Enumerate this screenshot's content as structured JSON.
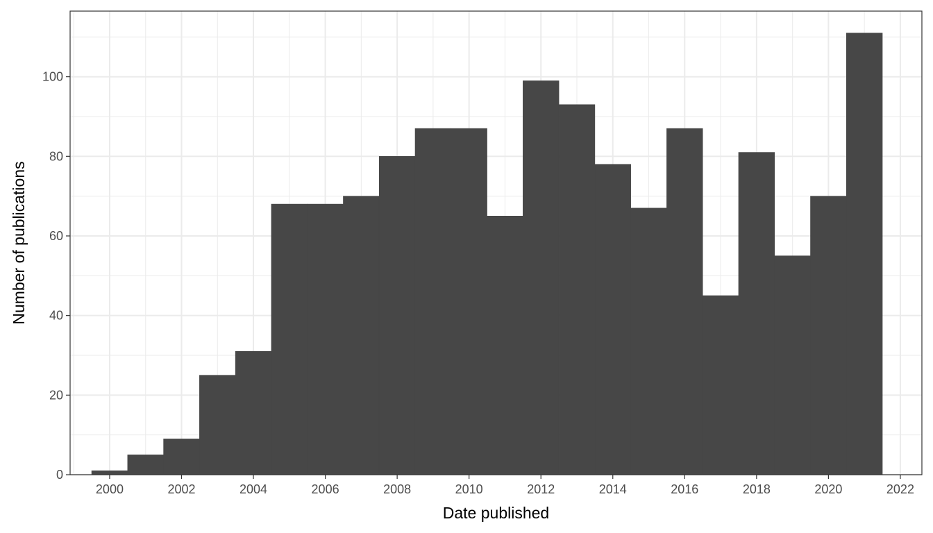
{
  "chart_data": {
    "type": "bar",
    "xlabel": "Date published",
    "ylabel": "Number of publications",
    "bar_color": "#474747",
    "x": [
      2000,
      2001,
      2002,
      2003,
      2004,
      2005,
      2006,
      2007,
      2008,
      2009,
      2010,
      2011,
      2012,
      2013,
      2014,
      2015,
      2016,
      2017,
      2018,
      2019,
      2020,
      2021
    ],
    "values": [
      1,
      5,
      9,
      25,
      31,
      68,
      68,
      70,
      80,
      87,
      87,
      65,
      99,
      93,
      78,
      67,
      87,
      45,
      81,
      55,
      70,
      111
    ],
    "xlim": [
      1998.9,
      2022.6
    ],
    "ylim": [
      0,
      116.5
    ],
    "x_ticks": [
      "2000",
      "2002",
      "2004",
      "2006",
      "2008",
      "2010",
      "2012",
      "2014",
      "2016",
      "2018",
      "2020",
      "2022"
    ],
    "y_ticks": [
      "0",
      "20",
      "40",
      "60",
      "80",
      "100"
    ],
    "grid": true
  }
}
